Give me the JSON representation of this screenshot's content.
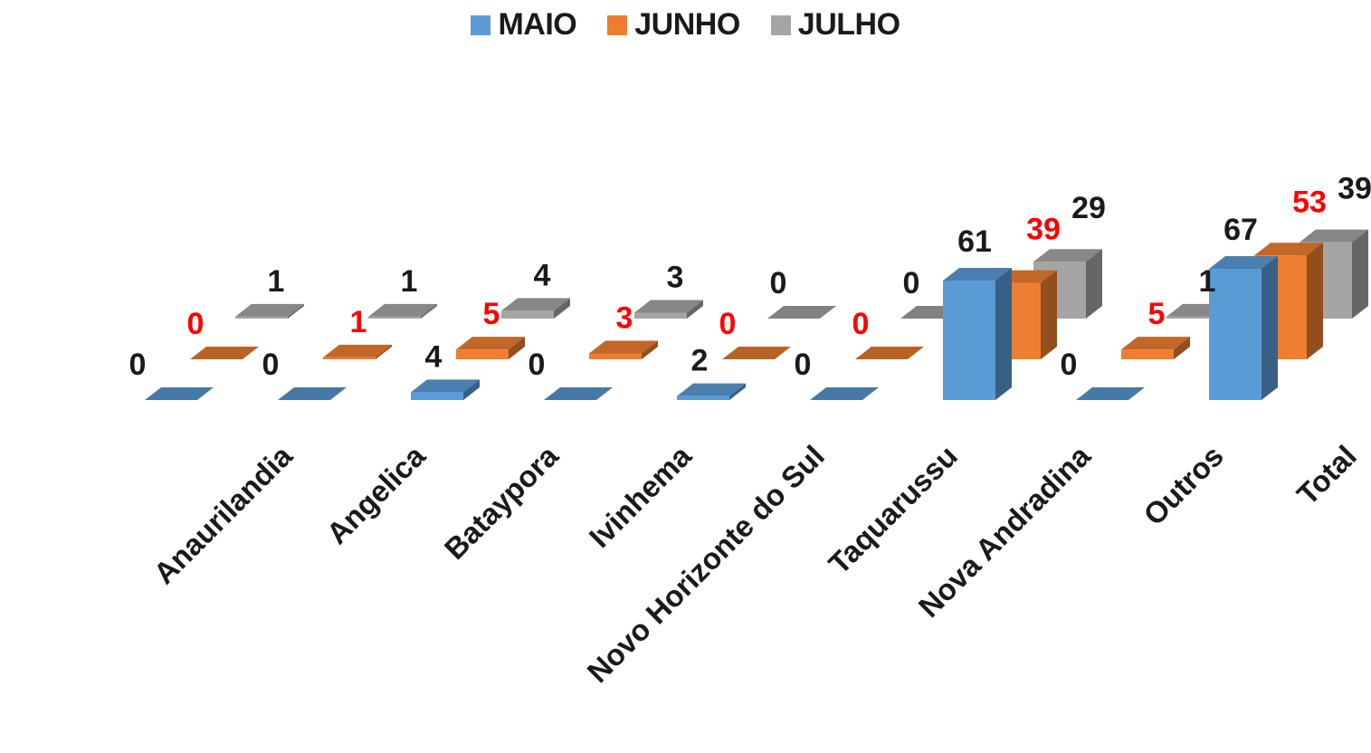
{
  "chart_data": {
    "type": "bar",
    "categories": [
      "Anaurilandia",
      "Angelica",
      "Bataypora",
      "Ivinhema",
      "Novo Horizonte do Sul",
      "Taquarussu",
      "Nova Andradina",
      "Outros",
      "Total"
    ],
    "series": [
      {
        "name": "MAIO",
        "values": [
          0,
          0,
          4,
          0,
          2,
          0,
          61,
          0,
          67
        ],
        "color": "#5B9BD5"
      },
      {
        "name": "JUNHO",
        "values": [
          0,
          1,
          5,
          3,
          0,
          0,
          39,
          5,
          53
        ],
        "color": "#ED7D31"
      },
      {
        "name": "JULHO",
        "values": [
          1,
          1,
          4,
          3,
          0,
          0,
          29,
          1,
          39
        ],
        "color": "#A5A5A5"
      }
    ],
    "value_label_colors": [
      "#1a1a1a",
      "#FF0000",
      "#1a1a1a"
    ],
    "title": "",
    "xlabel": "",
    "ylabel": "",
    "ylim": [
      0,
      67
    ],
    "grid": false,
    "legend_position": "top-center",
    "style": "3d-clustered-column"
  }
}
